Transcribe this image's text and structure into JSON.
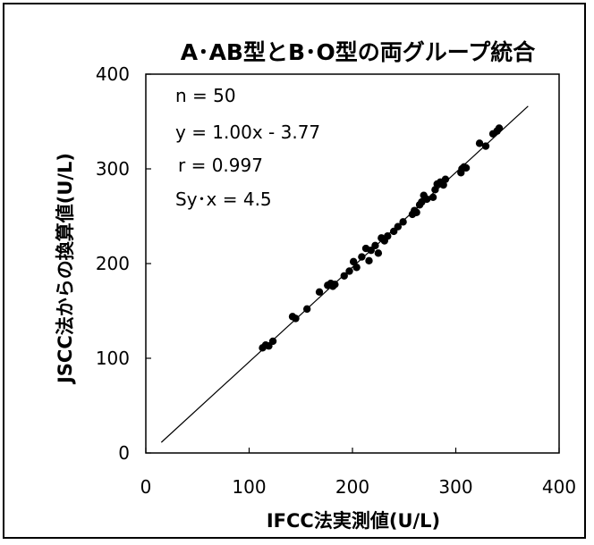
{
  "chart_data": {
    "type": "scatter",
    "title": "A･AB型とB･O型の両グループ統合",
    "xlabel": "IFCC法実測値(U/L)",
    "ylabel": "JSCC法からの換算値(U/L)",
    "xlim": [
      0,
      400
    ],
    "ylim": [
      0,
      400
    ],
    "xticks": [
      "0",
      "100",
      "200",
      "300",
      "400"
    ],
    "yticks": [
      "0",
      "100",
      "200",
      "300",
      "400"
    ],
    "grid": false,
    "stats": [
      "n = 50",
      "y = 1.00x - 3.77",
      "r = 0.997",
      "Sy･x = 4.5"
    ],
    "regression_line": {
      "x": [
        15,
        370
      ],
      "y": [
        11.2,
        366.2
      ]
    },
    "series": [
      {
        "x": [
          113,
          116,
          119,
          123,
          142,
          145,
          156,
          168,
          176,
          179,
          181,
          183,
          192,
          197,
          201,
          204,
          209,
          213,
          216,
          218,
          222,
          225,
          228,
          231,
          234,
          240,
          244,
          249,
          258,
          260,
          262,
          265,
          267,
          269,
          272,
          278,
          280,
          282,
          285,
          288,
          290,
          305,
          306,
          308,
          310,
          323,
          329,
          340,
          342,
          336
        ],
        "y": [
          111,
          114,
          113,
          118,
          144,
          142,
          152,
          170,
          177,
          179,
          176,
          178,
          187,
          192,
          202,
          196,
          207,
          216,
          203,
          214,
          219,
          211,
          227,
          224,
          229,
          234,
          239,
          244,
          252,
          256,
          254,
          262,
          265,
          272,
          268,
          270,
          278,
          284,
          286,
          283,
          289,
          296,
          300,
          302,
          301,
          327,
          324,
          340,
          343,
          337
        ]
      }
    ]
  }
}
